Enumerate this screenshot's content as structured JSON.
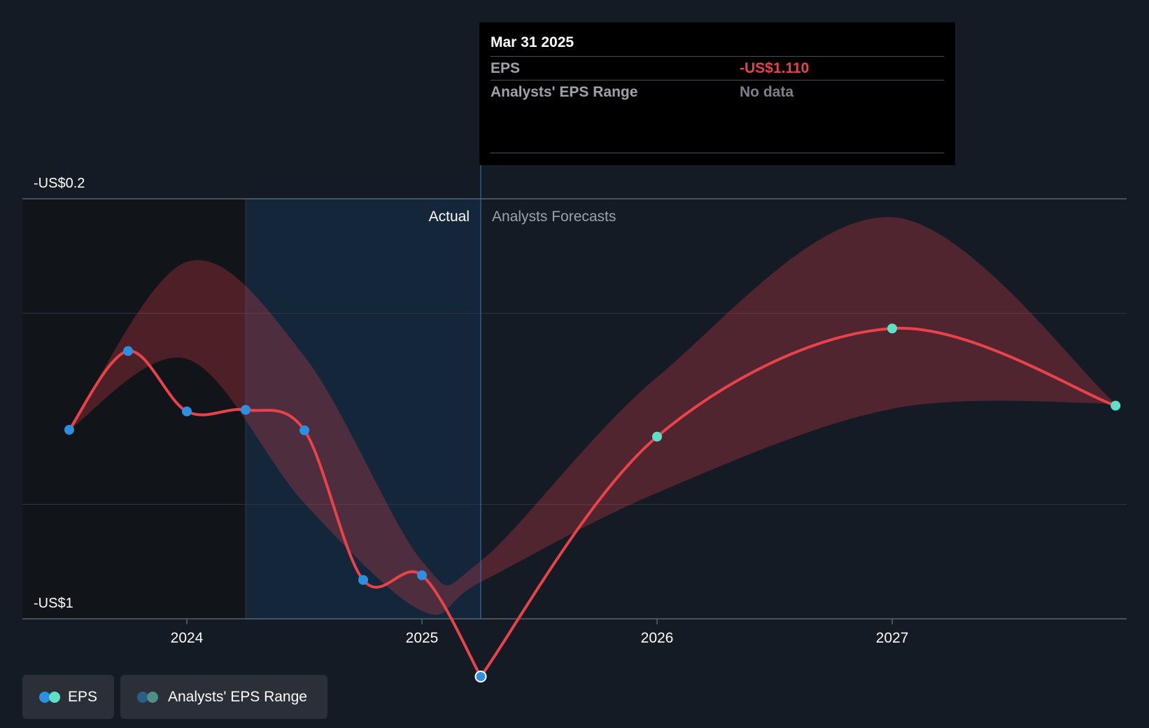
{
  "tooltip": {
    "date": "Mar 31 2025",
    "rows": [
      {
        "label": "EPS",
        "value": "-US$1.110"
      },
      {
        "label": "Analysts' EPS Range",
        "value": "No data"
      }
    ]
  },
  "legend": {
    "eps_label": "EPS",
    "range_label": "Analysts' EPS Range"
  },
  "chart_data": {
    "type": "line",
    "regions": {
      "actual_label": "Actual",
      "forecast_label": "Analysts Forecasts"
    },
    "y_tick_labels": [
      {
        "value": -0.2,
        "label": "-US$0.2"
      },
      {
        "value": -1.0,
        "label": "-US$1"
      }
    ],
    "x_tick_labels": [
      {
        "value": 2024.0,
        "label": "2024"
      },
      {
        "value": 2025.0,
        "label": "2025"
      },
      {
        "value": 2026.0,
        "label": "2026"
      },
      {
        "value": 2027.0,
        "label": "2027"
      }
    ],
    "xlim": [
      2023.3,
      2027.95
    ],
    "ylim": [
      -1.0,
      -0.2
    ],
    "grid_y": [
      -0.2,
      -0.418,
      -0.782,
      -1.0
    ],
    "actual_region": [
      2024.25,
      2025.25
    ],
    "past_region_end": 2024.25,
    "series": [
      {
        "name": "EPS",
        "kind": "actual",
        "color": "#e8424a",
        "marker_color": "#2d8fe0",
        "x": [
          2023.5,
          2023.75,
          2024.0,
          2024.25,
          2024.5,
          2024.75,
          2025.0,
          2025.25
        ],
        "y": [
          -0.64,
          -0.49,
          -0.605,
          -0.602,
          -0.641,
          -0.926,
          -0.917,
          -1.11
        ]
      },
      {
        "name": "EPS",
        "kind": "forecast",
        "color": "#e8424a",
        "marker_color": "#5ee0c8",
        "x": [
          2025.25,
          2026.0,
          2027.0,
          2027.95
        ],
        "y": [
          -1.11,
          -0.653,
          -0.447,
          -0.594
        ]
      }
    ],
    "range": {
      "name": "Analysts' EPS Range",
      "x": [
        2023.5,
        2024.0,
        2024.5,
        2025.0,
        2025.25,
        2026.0,
        2027.0,
        2027.95
      ],
      "upper": [
        -0.64,
        -0.32,
        -0.5,
        -0.89,
        -0.89,
        -0.54,
        -0.235,
        -0.59
      ],
      "lower": [
        -0.64,
        -0.505,
        -0.78,
        -0.985,
        -0.93,
        -0.76,
        -0.6,
        -0.59
      ]
    },
    "colors": {
      "background": "#151b24",
      "past_shade": "#111419",
      "actual_shade": "#13263a",
      "grid": "#2e3540",
      "range_fill": "#e8424a"
    }
  }
}
